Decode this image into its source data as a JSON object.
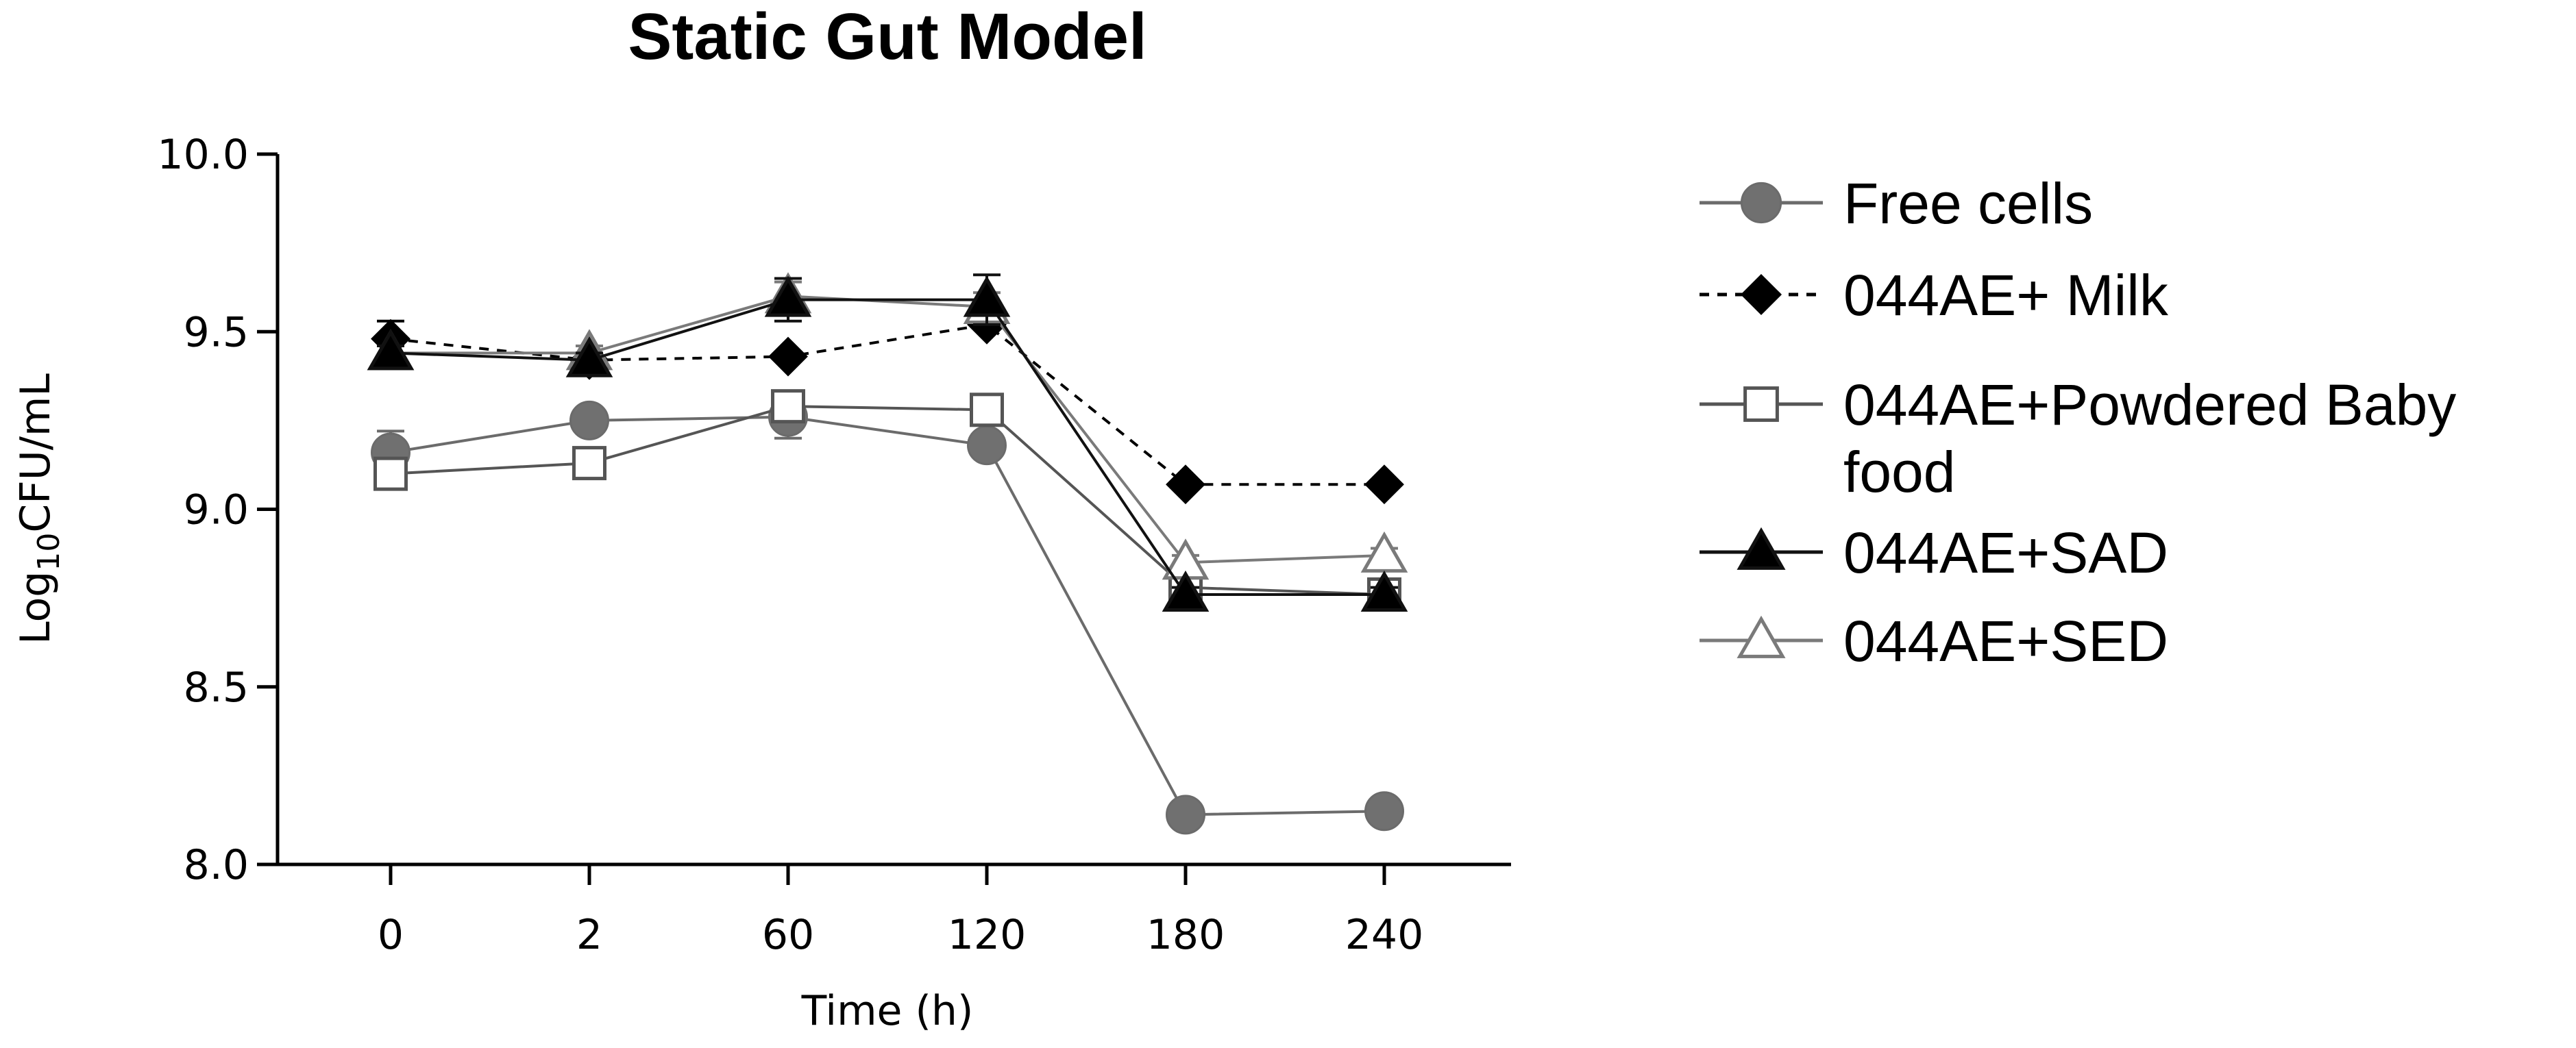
{
  "chart_data": {
    "type": "line",
    "title": "Static Gut Model",
    "xlabel": "Time (h)",
    "ylabel": {
      "prefix": "Log",
      "subscript": "10",
      "suffix": "CFU/mL"
    },
    "categories": [
      "0",
      "2",
      "60",
      "120",
      "180",
      "240"
    ],
    "y_tick_labels": [
      "8.0",
      "8.5",
      "9.0",
      "9.5",
      "10.0"
    ],
    "ylim": [
      8.0,
      10.0
    ],
    "grid": false,
    "legend_position": "right",
    "series": [
      {
        "name": "Free cells",
        "legend_lines": [
          "Free cells"
        ],
        "marker": "circle",
        "line": "solid",
        "color": "#6b6b6b",
        "fill": "#707070",
        "values": [
          9.16,
          9.25,
          9.26,
          9.18,
          8.14,
          8.15
        ],
        "errors": [
          0.06,
          0.01,
          0.06,
          0.01,
          0.03,
          0.01
        ]
      },
      {
        "name": "044AE+ Milk",
        "legend_lines": [
          "044AE+ Milk"
        ],
        "marker": "diamond",
        "line": "dashed",
        "color": "#000000",
        "fill": "#000000",
        "values": [
          9.48,
          9.42,
          9.43,
          9.52,
          9.07,
          9.07
        ],
        "errors": [
          0.05,
          0.01,
          0.01,
          0.01,
          0.01,
          0.01
        ]
      },
      {
        "name": "044AE+Powdered Baby food",
        "legend_lines": [
          "044AE+Powdered Baby",
          "food"
        ],
        "marker": "square-open",
        "line": "solid",
        "color": "#555555",
        "fill": "#ffffff",
        "values": [
          9.1,
          9.13,
          9.29,
          9.28,
          8.78,
          8.76
        ],
        "errors": [
          0.02,
          0.01,
          0.04,
          0.02,
          0.02,
          0.02
        ]
      },
      {
        "name": "044AE+SAD",
        "legend_lines": [
          "044AE+SAD"
        ],
        "marker": "triangle",
        "line": "solid",
        "color": "#111111",
        "fill": "#000000",
        "values": [
          9.44,
          9.42,
          9.59,
          9.59,
          8.76,
          8.76
        ],
        "errors": [
          0.02,
          0.02,
          0.06,
          0.07,
          0.02,
          0.02
        ]
      },
      {
        "name": "044AE+SED",
        "legend_lines": [
          "044AE+SED"
        ],
        "marker": "triangle-open",
        "line": "solid",
        "color": "#7a7a7a",
        "fill": "#ffffff",
        "values": [
          9.44,
          9.44,
          9.6,
          9.57,
          8.85,
          8.87
        ],
        "errors": [
          0.02,
          0.02,
          0.04,
          0.04,
          0.02,
          0.02
        ]
      }
    ]
  }
}
